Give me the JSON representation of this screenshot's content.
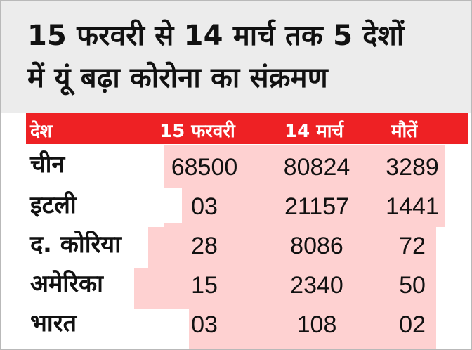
{
  "headline": {
    "line1": "15 फरवरी से 14 मार्च तक 5 देशों",
    "line2": "में यूं बढ़ा कोरोना का संक्रमण"
  },
  "table": {
    "headers": [
      "देश",
      "15 फरवरी",
      "14 मार्च",
      "मौतें"
    ],
    "rows": [
      {
        "country": "चीन",
        "feb15": "68500",
        "mar14": "80824",
        "deaths": "3289"
      },
      {
        "country": "इटली",
        "feb15": "03",
        "mar14": "21157",
        "deaths": "1441"
      },
      {
        "country": "द. कोरिया",
        "feb15": "28",
        "mar14": "8086",
        "deaths": "72"
      },
      {
        "country": "अमेरिका",
        "feb15": "15",
        "mar14": "2340",
        "deaths": "50"
      },
      {
        "country": "भारत",
        "feb15": "03",
        "mar14": "108",
        "deaths": "02"
      }
    ]
  },
  "colors": {
    "header_bar": "#ee2124",
    "row_fill": "#fed1d1",
    "headline_bg": "#ececec"
  }
}
